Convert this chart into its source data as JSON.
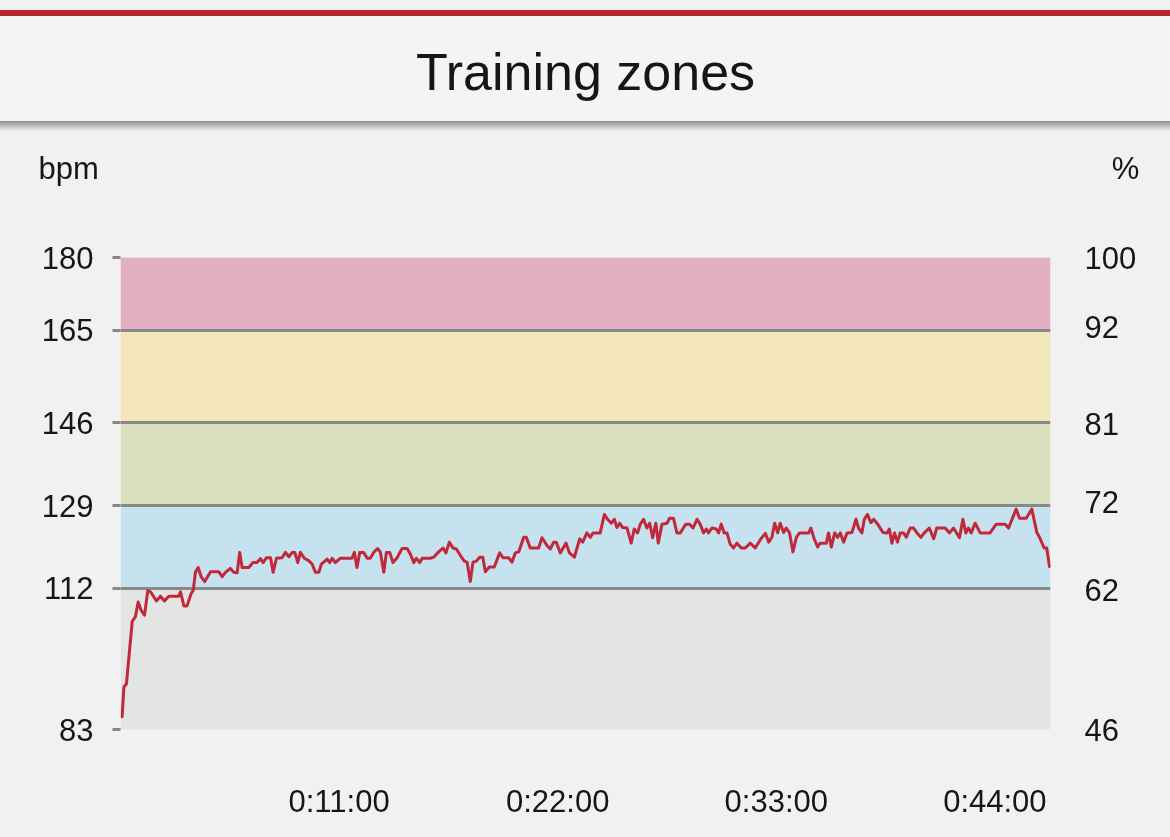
{
  "chart_data": {
    "type": "line",
    "title": "Training zones",
    "ylabel": "bpm",
    "y2label": "%",
    "x": [
      0.08,
      0.17,
      0.3,
      0.59,
      0.75,
      0.89,
      1.04,
      1.21,
      1.37,
      1.51,
      1.81,
      2.01,
      2.21,
      2.43,
      2.93,
      3.02,
      3.19,
      3.35,
      3.55,
      3.66,
      3.77,
      3.91,
      4.07,
      4.24,
      4.53,
      4.95,
      5.12,
      5.28,
      5.53,
      5.7,
      5.87,
      6.0,
      6.12,
      6.46,
      6.66,
      6.87,
      7.04,
      7.18,
      7.34,
      7.55,
      7.68,
      7.85,
      8.13,
      8.3,
      8.47,
      8.64,
      8.77,
      8.92,
      9.05,
      9.25,
      9.47,
      9.64,
      9.81,
      9.98,
      10.11,
      10.4,
      10.53,
      10.65,
      10.81,
      11.07,
      11.65,
      11.77,
      11.9,
      12.04,
      12.24,
      12.41,
      12.57,
      12.74,
      12.94,
      13.08,
      13.25,
      13.38,
      13.55,
      13.71,
      13.92,
      14.17,
      14.42,
      14.59,
      14.76,
      14.89,
      15.06,
      15.18,
      15.59,
      15.76,
      16.01,
      16.23,
      16.38,
      16.55,
      16.73,
      16.9,
      17.1,
      17.3,
      17.44,
      17.6,
      17.74,
      17.91,
      18.07,
      18.23,
      18.36,
      18.56,
      18.81,
      19.08,
      19.25,
      19.53,
      19.7,
      19.87,
      20.04,
      20.29,
      20.42,
      20.62,
      21.04,
      21.21,
      21.46,
      21.63,
      21.8,
      21.93,
      22.13,
      22.42,
      22.59,
      22.84,
      23.11,
      23.26,
      23.47,
      23.64,
      23.78,
      24.14,
      24.35,
      24.51,
      24.7,
      24.85,
      24.98,
      25.12,
      25.27,
      25.49,
      25.7,
      25.85,
      26.02,
      26.16,
      26.32,
      26.49,
      26.63,
      26.78,
      26.94,
      27.06,
      27.25,
      27.5,
      27.63,
      27.83,
      28.0,
      28.17,
      28.45,
      28.64,
      28.81,
      29.01,
      29.17,
      29.34,
      29.48,
      29.59,
      29.76,
      29.98,
      30.1,
      30.23,
      30.38,
      30.52,
      30.68,
      30.85,
      31.02,
      31.24,
      31.44,
      31.69,
      31.94,
      32.23,
      32.45,
      32.62,
      32.78,
      32.92,
      33.07,
      33.2,
      33.37,
      33.5,
      33.67,
      33.84,
      34.01,
      34.17,
      34.63,
      34.74,
      34.91,
      35.08,
      35.21,
      35.52,
      35.63,
      35.77,
      35.94,
      36.09,
      36.22,
      36.39,
      36.56,
      36.81,
      37.01,
      37.14,
      37.31,
      37.43,
      37.59,
      37.76,
      37.9,
      38.1,
      38.37,
      38.57,
      38.69,
      38.82,
      38.95,
      39.1,
      39.24,
      39.41,
      39.54,
      39.74,
      39.91,
      40.08,
      40.28,
      40.45,
      40.7,
      40.92,
      41.08,
      41.5,
      41.72,
      41.92,
      42.22,
      42.39,
      42.54,
      42.67,
      42.81,
      43.01,
      43.26,
      43.76,
      44.07,
      44.52,
      44.69,
      45.07,
      45.24,
      45.58,
      45.86,
      46.11,
      46.25,
      46.48,
      46.61,
      46.75
    ],
    "series": [
      {
        "color": "#c1283a",
        "values": [
          85.6,
          91.7,
          92.4,
          105.2,
          106.2,
          109.2,
          107.5,
          106.5,
          111.5,
          111.3,
          109.4,
          110.4,
          109.4,
          110.4,
          110.4,
          111.3,
          108.4,
          108.4,
          110.9,
          111.6,
          115.3,
          116.3,
          114.3,
          113.4,
          115.4,
          115.4,
          114.4,
          115.3,
          116.1,
          115.3,
          115.2,
          119.4,
          116.3,
          116.3,
          117.3,
          117.3,
          118.1,
          117.3,
          118.3,
          118.3,
          115.3,
          118.2,
          118.3,
          119.4,
          118.5,
          119.4,
          119.4,
          117.3,
          119.4,
          118.2,
          117.7,
          117.0,
          115.3,
          115.3,
          117.0,
          118.0,
          117.3,
          118.2,
          117.3,
          118.2,
          118.2,
          119.4,
          116.3,
          119.4,
          119.4,
          118.2,
          118.2,
          119.4,
          120.2,
          119.4,
          115.3,
          119.4,
          119.4,
          117.3,
          118.3,
          120.2,
          120.2,
          119.0,
          117.3,
          118.2,
          117.3,
          118.2,
          118.2,
          118.4,
          119.5,
          120.3,
          119.3,
          121.5,
          120.3,
          120.1,
          118.8,
          117.6,
          117.4,
          113.4,
          117.4,
          117.6,
          118.4,
          118.4,
          115.4,
          116.4,
          116.4,
          119.3,
          118.3,
          118.3,
          117.4,
          119.3,
          119.5,
          122.5,
          122.5,
          120.3,
          120.3,
          122.4,
          120.8,
          120.1,
          121.5,
          121.5,
          119.3,
          121.3,
          119.3,
          118.4,
          122.2,
          121.5,
          123.4,
          122.5,
          123.4,
          123.4,
          127.2,
          126.2,
          125.4,
          126.2,
          124.5,
          125.4,
          124.5,
          124.4,
          121.3,
          124.2,
          123.4,
          125.2,
          126.2,
          124.4,
          125.4,
          122.4,
          125.4,
          121.3,
          125.2,
          125.4,
          126.4,
          126.4,
          123.4,
          123.4,
          125.2,
          125.2,
          124.4,
          126.2,
          125.2,
          123.4,
          124.2,
          123.4,
          124.4,
          124.2,
          123.4,
          125.2,
          123.4,
          123.4,
          121.1,
          120.3,
          121.3,
          120.3,
          120.3,
          121.3,
          120.3,
          122.2,
          123.3,
          121.5,
          122.5,
          125.4,
          123.4,
          125.4,
          123.5,
          124.4,
          123.4,
          119.5,
          122.5,
          123.4,
          123.4,
          124.4,
          122.2,
          120.5,
          121.3,
          121.3,
          123.4,
          120.5,
          123.4,
          122.5,
          123.4,
          121.5,
          123.4,
          123.5,
          126.2,
          124.4,
          123.4,
          126.2,
          127.2,
          125.5,
          126.2,
          125.2,
          123.5,
          123.4,
          124.2,
          121.3,
          123.4,
          121.5,
          123.4,
          123.4,
          122.5,
          124.4,
          124.4,
          123.4,
          122.5,
          123.4,
          124.4,
          122.2,
          124.4,
          124.4,
          123.4,
          124.4,
          122.4,
          126.2,
          123.4,
          124.4,
          123.4,
          125.4,
          123.4,
          123.4,
          125.2,
          125.2,
          124.4,
          128.3,
          126.4,
          126.4,
          128.3,
          123.5,
          122.5,
          120.3,
          120.3,
          116.5
        ]
      }
    ],
    "xlim": [
      0,
      46.8
    ],
    "xticks": [
      {
        "value": 11,
        "label": "0:11:00"
      },
      {
        "value": 22,
        "label": "0:22:00"
      },
      {
        "value": 33,
        "label": "0:33:00"
      },
      {
        "value": 44,
        "label": "0:44:00"
      }
    ],
    "ylim": [
      83,
      180
    ],
    "yticks": [
      83,
      112,
      129,
      146,
      165,
      180
    ],
    "y2lim": [
      46,
      100
    ],
    "y2ticks": [
      46,
      62,
      72,
      81,
      92,
      100
    ],
    "bands": [
      {
        "axis": "y",
        "from": 83,
        "to": 112,
        "color": "#e3e4e4"
      },
      {
        "axis": "y",
        "from": 112,
        "to": 129,
        "color": "#c5e2ee"
      },
      {
        "axis": "y",
        "from": 129,
        "to": 146,
        "color": "#dbe0c0"
      },
      {
        "axis": "y",
        "from": 146,
        "to": 165,
        "color": "#f2e6ba"
      },
      {
        "axis": "y",
        "from": 165,
        "to": 180,
        "color": "#e3afc2"
      }
    ],
    "grid": "y",
    "line_style": "solid"
  }
}
